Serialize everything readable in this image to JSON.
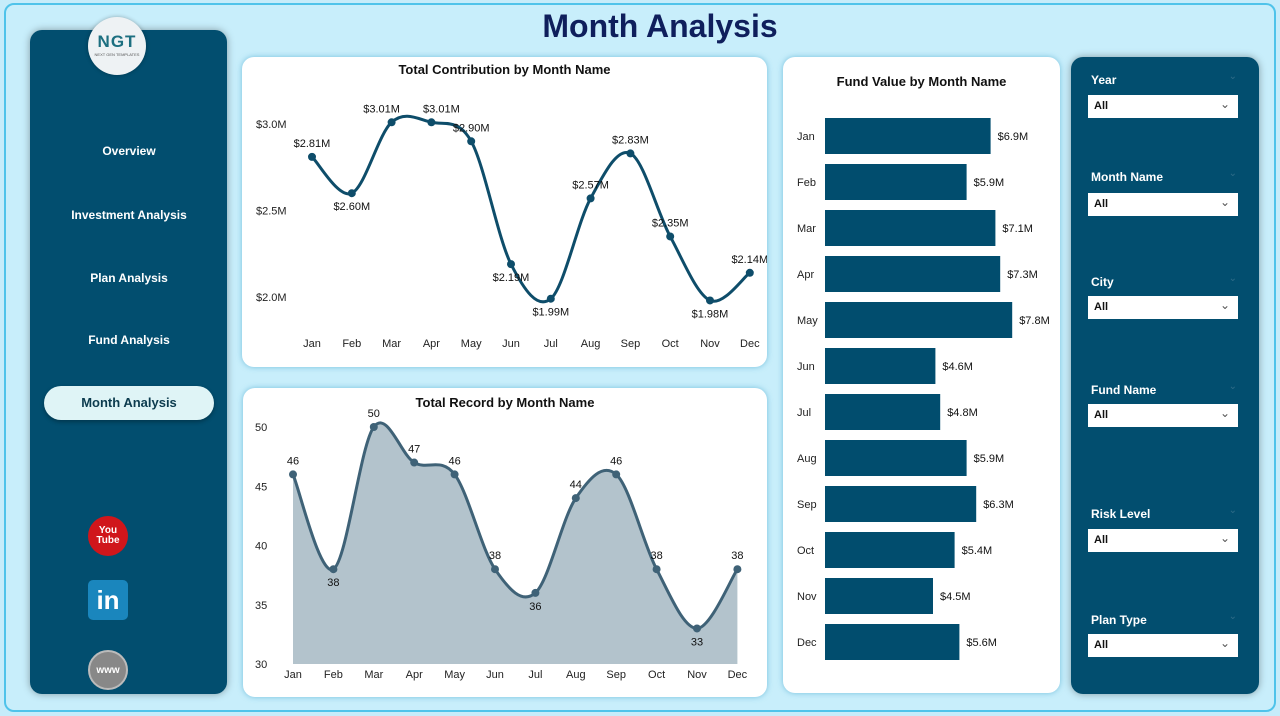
{
  "page_title": "Month Analysis",
  "logo": {
    "text": "NGT",
    "subtitle": "NEXT GEN TEMPLATES"
  },
  "nav": [
    {
      "label": "Overview"
    },
    {
      "label": "Investment Analysis"
    },
    {
      "label": "Plan Analysis"
    },
    {
      "label": "Fund Analysis"
    },
    {
      "label": "Month Analysis",
      "active": true
    }
  ],
  "social": [
    {
      "icon": "youtube-icon",
      "label": "You Tube"
    },
    {
      "icon": "linkedin-icon",
      "label": "in"
    },
    {
      "icon": "globe-icon",
      "label": "www"
    }
  ],
  "filters": [
    {
      "label": "Year",
      "value": "All"
    },
    {
      "label": "Month Name",
      "value": "All"
    },
    {
      "label": "City",
      "value": "All"
    },
    {
      "label": "Fund Name",
      "value": "All"
    },
    {
      "label": "Risk Level",
      "value": "All"
    },
    {
      "label": "Plan Type",
      "value": "All"
    }
  ],
  "colors": {
    "sidebar": "#024e6f",
    "accent": "#014d6e",
    "area_fill": "#b3c3cc",
    "background": "#c8eefb"
  },
  "chart_data": [
    {
      "type": "line",
      "title": "Total Contribution by Month Name",
      "categories": [
        "Jan",
        "Feb",
        "Mar",
        "Apr",
        "May",
        "Jun",
        "Jul",
        "Aug",
        "Sep",
        "Oct",
        "Nov",
        "Dec"
      ],
      "values": [
        2.81,
        2.6,
        3.01,
        3.01,
        2.9,
        2.19,
        1.99,
        2.57,
        2.83,
        2.35,
        1.98,
        2.14
      ],
      "labels": [
        "$2.81M",
        "$2.60M",
        "$3.01M",
        "$3.01M",
        "$2.90M",
        "$2.19M",
        "$1.99M",
        "$2.57M",
        "$2.83M",
        "$2.35M",
        "$1.98M",
        "$2.14M"
      ],
      "yticks": [
        2.0,
        2.5,
        3.0
      ],
      "ytick_labels": [
        "$2.0M",
        "$2.5M",
        "$3.0M"
      ],
      "unit": "$M"
    },
    {
      "type": "area",
      "title": "Total Record by Month Name",
      "categories": [
        "Jan",
        "Feb",
        "Mar",
        "Apr",
        "May",
        "Jun",
        "Jul",
        "Aug",
        "Sep",
        "Oct",
        "Nov",
        "Dec"
      ],
      "values": [
        46,
        38,
        50,
        47,
        46,
        38,
        36,
        44,
        46,
        38,
        33,
        38
      ],
      "yticks": [
        30,
        35,
        40,
        45,
        50
      ],
      "ylim": [
        30,
        50
      ]
    },
    {
      "type": "bar",
      "orientation": "horizontal",
      "title": "Fund Value by Month Name",
      "categories": [
        "Jan",
        "Feb",
        "Mar",
        "Apr",
        "May",
        "Jun",
        "Jul",
        "Aug",
        "Sep",
        "Oct",
        "Nov",
        "Dec"
      ],
      "values": [
        6.9,
        5.9,
        7.1,
        7.3,
        7.8,
        4.6,
        4.8,
        5.9,
        6.3,
        5.4,
        4.5,
        5.6
      ],
      "labels": [
        "$6.9M",
        "$5.9M",
        "$7.1M",
        "$7.3M",
        "$7.8M",
        "$4.6M",
        "$4.8M",
        "$5.9M",
        "$6.3M",
        "$5.4M",
        "$4.5M",
        "$5.6M"
      ],
      "unit": "$M"
    }
  ]
}
